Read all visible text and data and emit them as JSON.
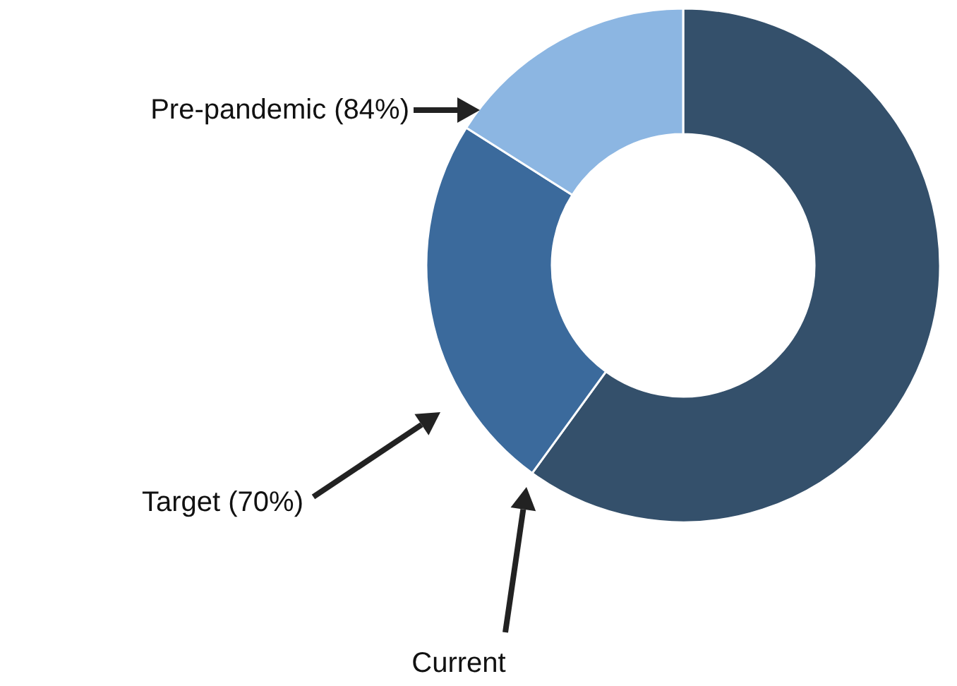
{
  "chart_data": {
    "type": "donut",
    "categories": [
      "Current",
      "Target (70%)",
      "Pre-pandemic (84%)"
    ],
    "values": [
      60,
      24,
      16
    ],
    "colors": [
      "#34506b",
      "#3b6a9c",
      "#8cb6e2"
    ],
    "legend": false
  }
}
